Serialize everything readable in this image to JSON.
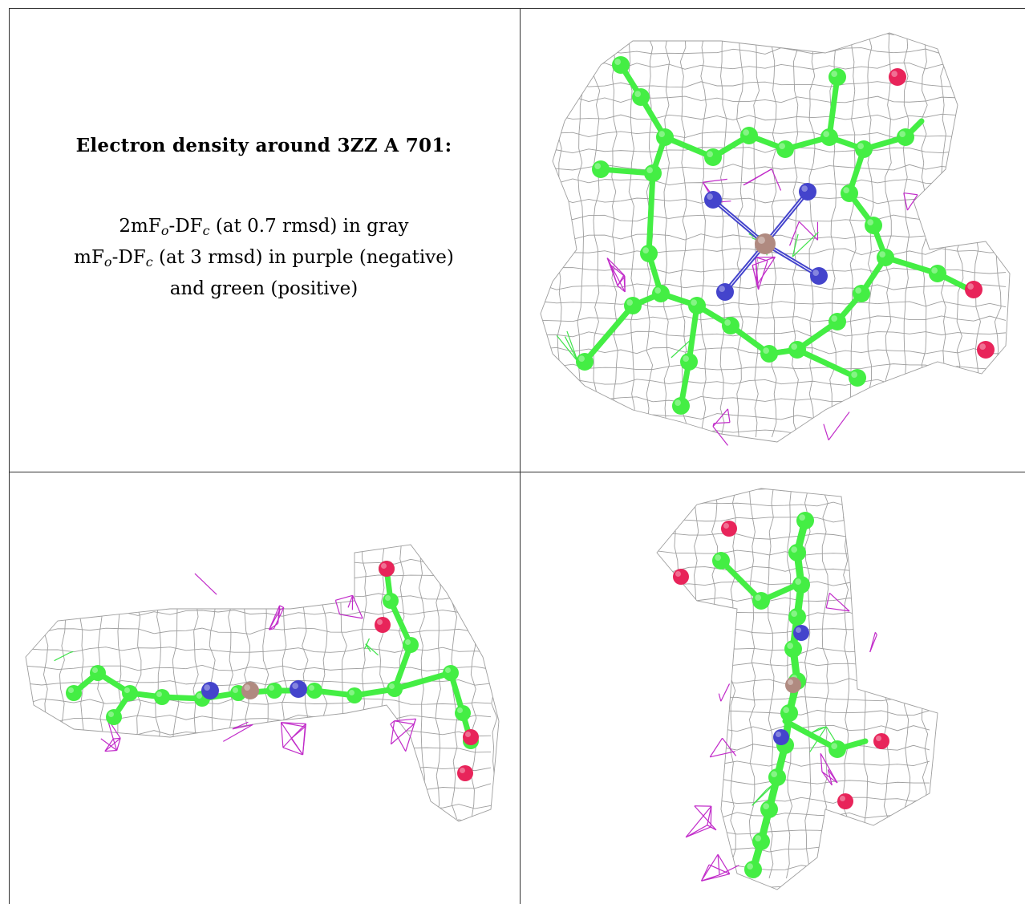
{
  "caption": {
    "title": "Electron density around 3ZZ A 701:",
    "line1_prefix": "2mF",
    "line1_sub1": "o",
    "line1_mid": "-DF",
    "line1_sub2": "c",
    "line1_suffix": " (at 0.7 rmsd) in gray",
    "line2_prefix": "mF",
    "line2_sub1": "o",
    "line2_mid": "-DF",
    "line2_sub2": "c",
    "line2_suffix": " (at 3 rmsd) in purple (negative)",
    "line3": "and green (positive)"
  },
  "colors": {
    "mesh_2fofc": "#9e9e9e",
    "mesh_negative": "#c12bc9",
    "mesh_positive": "#3fe34a",
    "carbon": "#44ee44",
    "nitrogen": "#4444cc",
    "oxygen": "#e8245a",
    "metal": "#b08a80",
    "border": "#333333"
  },
  "views": {
    "top_right": "top-view",
    "bottom_left": "edge-view",
    "bottom_right": "side-view"
  }
}
